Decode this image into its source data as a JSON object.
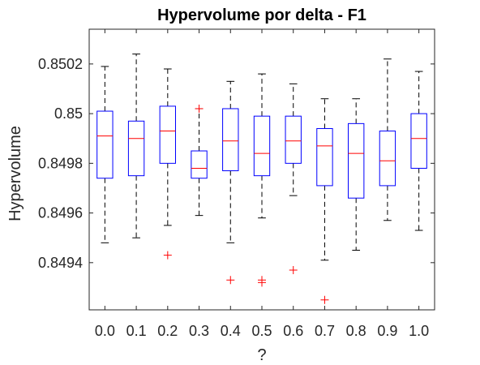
{
  "chart_data": {
    "type": "box",
    "title": "Hypervolume por delta - F1",
    "xlabel": "?",
    "ylabel": "Hypervolume",
    "categories": [
      "0.0",
      "0.1",
      "0.2",
      "0.3",
      "0.4",
      "0.5",
      "0.6",
      "0.7",
      "0.8",
      "0.9",
      "1.0"
    ],
    "yticks": [
      0.8494,
      0.8496,
      0.8498,
      0.85,
      0.8502
    ],
    "ytick_labels": [
      "0.8494",
      "0.8496",
      "0.8498",
      "0.85",
      "0.8502"
    ],
    "ylim": [
      0.84921,
      0.85034
    ],
    "grid": false,
    "box_color": "#0000ff",
    "median_color": "#ff0000",
    "whisker_color": "#000000",
    "outlier_color": "#ff0000",
    "boxes": [
      {
        "label": "0.0",
        "whisker_low": 0.84948,
        "q1": 0.84974,
        "median": 0.84991,
        "q3": 0.85001,
        "whisker_high": 0.85019,
        "outliers": []
      },
      {
        "label": "0.1",
        "whisker_low": 0.8495,
        "q1": 0.84975,
        "median": 0.8499,
        "q3": 0.84997,
        "whisker_high": 0.85024,
        "outliers": []
      },
      {
        "label": "0.2",
        "whisker_low": 0.84955,
        "q1": 0.8498,
        "median": 0.84993,
        "q3": 0.85003,
        "whisker_high": 0.85018,
        "outliers": [
          0.84943
        ]
      },
      {
        "label": "0.3",
        "whisker_low": 0.84959,
        "q1": 0.84974,
        "median": 0.84978,
        "q3": 0.84985,
        "whisker_high": 0.85002,
        "outliers": [
          0.85002
        ]
      },
      {
        "label": "0.4",
        "whisker_low": 0.84948,
        "q1": 0.84977,
        "median": 0.84989,
        "q3": 0.85002,
        "whisker_high": 0.85013,
        "outliers": [
          0.84933
        ]
      },
      {
        "label": "0.5",
        "whisker_low": 0.84958,
        "q1": 0.84975,
        "median": 0.84984,
        "q3": 0.84999,
        "whisker_high": 0.85016,
        "outliers": [
          0.84933,
          0.84932
        ]
      },
      {
        "label": "0.6",
        "whisker_low": 0.84967,
        "q1": 0.8498,
        "median": 0.84989,
        "q3": 0.84999,
        "whisker_high": 0.85012,
        "outliers": [
          0.84937
        ]
      },
      {
        "label": "0.7",
        "whisker_low": 0.84941,
        "q1": 0.84971,
        "median": 0.84987,
        "q3": 0.84994,
        "whisker_high": 0.85006,
        "outliers": [
          0.84925
        ]
      },
      {
        "label": "0.8",
        "whisker_low": 0.84945,
        "q1": 0.84966,
        "median": 0.84984,
        "q3": 0.84996,
        "whisker_high": 0.85006,
        "outliers": []
      },
      {
        "label": "0.9",
        "whisker_low": 0.84957,
        "q1": 0.84971,
        "median": 0.84981,
        "q3": 0.84993,
        "whisker_high": 0.85022,
        "outliers": []
      },
      {
        "label": "1.0",
        "whisker_low": 0.84953,
        "q1": 0.84978,
        "median": 0.8499,
        "q3": 0.85,
        "whisker_high": 0.85017,
        "outliers": []
      }
    ]
  }
}
